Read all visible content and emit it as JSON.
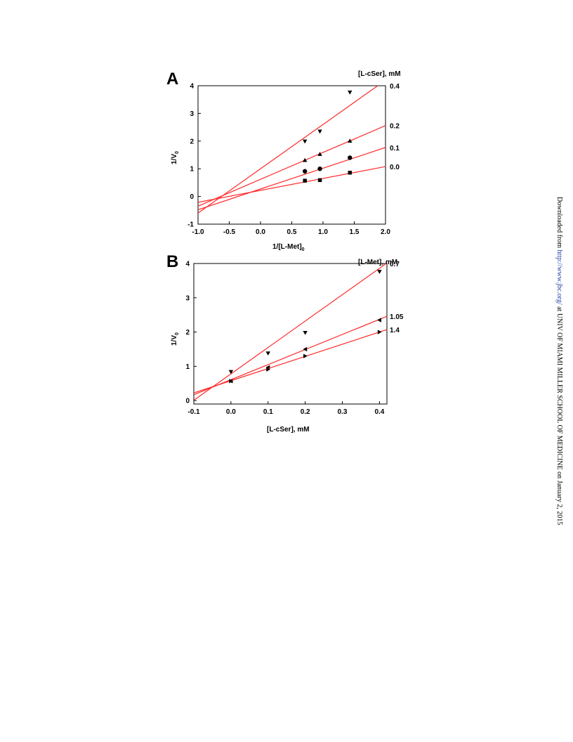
{
  "watermark": {
    "prefix": "Downloaded from ",
    "url": "http://www.jbc.org/",
    "suffix": " at UNIV OF MIAMI MILLER SCHOOL OF MEDICINE on January 2, 2015"
  },
  "colors": {
    "fit_line": "#ff2a2a",
    "marker": "#000000",
    "axis": "#000000"
  },
  "chart_data": [
    {
      "type": "scatter",
      "panel": "A",
      "xlabel": "1/[L-Met]",
      "xlabel_sub": "0",
      "ylabel": "1/V",
      "ylabel_sub": "0",
      "legend_title": "[L-cSer], mM",
      "xlim": [
        -1.0,
        2.0
      ],
      "ylim": [
        -1,
        4
      ],
      "xticks": [
        "-1.0",
        "-0.5",
        "0.0",
        "0.5",
        "1.0",
        "1.5",
        "2.0"
      ],
      "xtick_values": [
        -1.0,
        -0.5,
        0.0,
        0.5,
        1.0,
        1.5,
        2.0
      ],
      "yticks": [
        "-1",
        "0",
        "1",
        "2",
        "3",
        "4"
      ],
      "ytick_values": [
        -1,
        0,
        1,
        2,
        3,
        4
      ],
      "grid": false,
      "series": [
        {
          "name": "0.0",
          "marker": "square",
          "x": [
            0.71,
            0.95,
            1.43
          ],
          "y": [
            0.57,
            0.59,
            0.86
          ],
          "fit": {
            "slope": 0.43,
            "intercept": 0.22
          }
        },
        {
          "name": "0.1",
          "marker": "circle",
          "x": [
            0.71,
            0.95,
            1.43
          ],
          "y": [
            0.91,
            1.0,
            1.4
          ],
          "fit": {
            "slope": 0.75,
            "intercept": 0.27
          }
        },
        {
          "name": "0.2",
          "marker": "triangle-up",
          "x": [
            0.71,
            0.95,
            1.43
          ],
          "y": [
            1.31,
            1.53,
            2.01
          ],
          "fit": {
            "slope": 0.97,
            "intercept": 0.62
          }
        },
        {
          "name": "0.4",
          "marker": "triangle-down",
          "x": [
            0.71,
            0.95,
            1.43
          ],
          "y": [
            1.99,
            2.35,
            3.76
          ],
          "fit": {
            "slope": 1.6,
            "intercept": 1.0
          }
        }
      ]
    },
    {
      "type": "scatter",
      "panel": "B",
      "xlabel": "[L-cSer], mM",
      "ylabel": "1/V",
      "ylabel_sub": "0",
      "legend_title": "[L-Met], mM",
      "xlim": [
        -0.1,
        0.42
      ],
      "ylim": [
        -0.1,
        4
      ],
      "xticks": [
        "-0.1",
        "0.0",
        "0.1",
        "0.2",
        "0.3",
        "0.4"
      ],
      "xtick_values": [
        -0.1,
        0.0,
        0.1,
        0.2,
        0.3,
        0.4
      ],
      "yticks": [
        "0",
        "1",
        "2",
        "3",
        "4"
      ],
      "ytick_values": [
        0,
        1,
        2,
        3,
        4
      ],
      "grid": false,
      "series": [
        {
          "name": "0.7",
          "marker": "triangle-down",
          "x": [
            0.0,
            0.1,
            0.2,
            0.4
          ],
          "y": [
            0.84,
            1.38,
            1.98,
            3.76
          ],
          "fit": {
            "slope": 7.7,
            "intercept": 0.78
          }
        },
        {
          "name": "1.05",
          "marker": "triangle-left",
          "x": [
            0.0,
            0.1,
            0.2,
            0.4
          ],
          "y": [
            0.57,
            0.97,
            1.5,
            2.35
          ],
          "fit": {
            "slope": 4.4,
            "intercept": 0.61
          }
        },
        {
          "name": "1.4",
          "marker": "triangle-right",
          "x": [
            0.0,
            0.1,
            0.2,
            0.4
          ],
          "y": [
            0.57,
            0.91,
            1.3,
            2.0
          ],
          "fit": {
            "slope": 3.55,
            "intercept": 0.58
          }
        }
      ]
    }
  ]
}
